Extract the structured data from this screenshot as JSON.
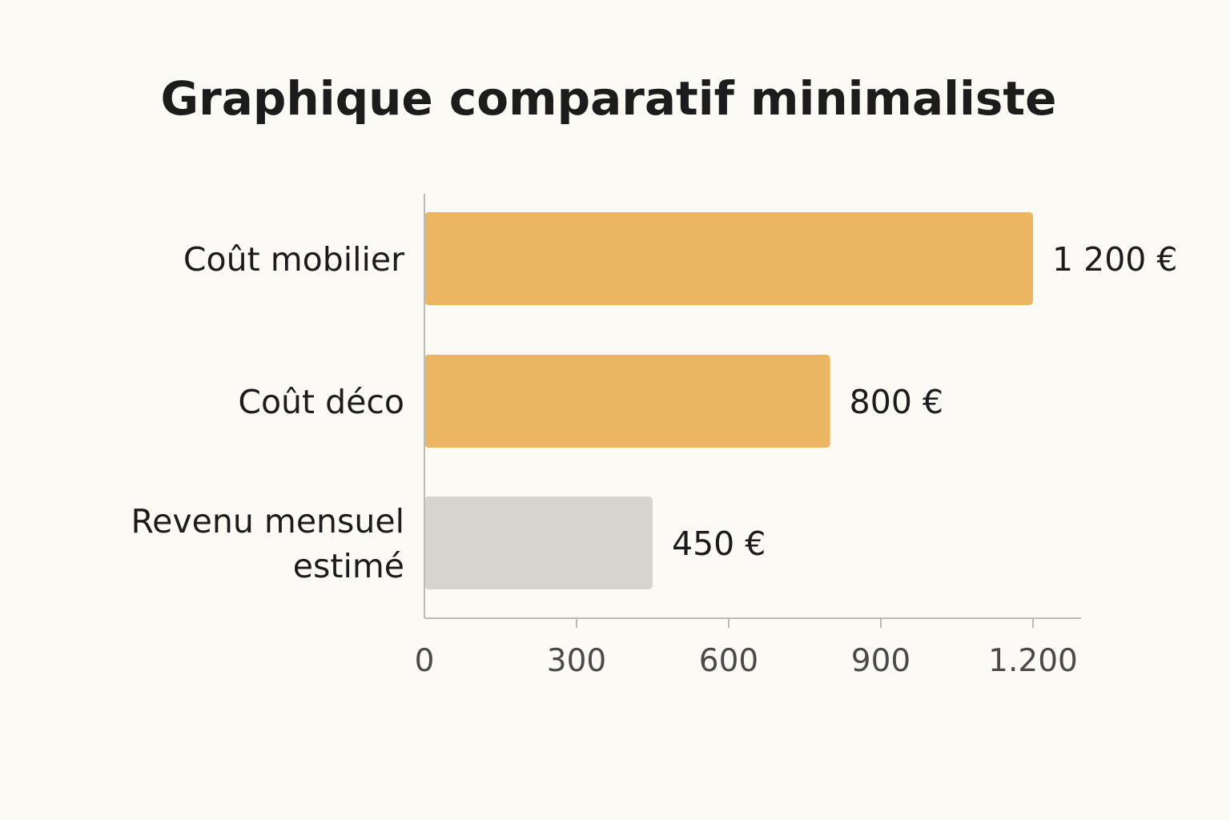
{
  "chart_data": {
    "type": "bar",
    "orientation": "horizontal",
    "title": "Graphique comparatif minimaliste",
    "categories": [
      "Coût mobilier",
      "Coût déco",
      "Revenu mensuel estimé"
    ],
    "category_lines": [
      [
        "Coût mobilier"
      ],
      [
        "Coût déco"
      ],
      [
        "Revenu mensuel",
        "estimé"
      ]
    ],
    "values": [
      1200,
      800,
      450
    ],
    "value_labels": [
      "1 200 €",
      "800 €",
      "450 €"
    ],
    "bar_colors": [
      "#ecb562",
      "#ecb562",
      "#d7d3ce"
    ],
    "xlim": [
      0,
      1200
    ],
    "x_ticks": [
      0,
      300,
      600,
      900,
      1200
    ],
    "x_tick_labels": [
      "0",
      "300",
      "600",
      "900",
      "1.200"
    ],
    "xlabel": "",
    "ylabel": "",
    "grid": false,
    "legend": "none"
  }
}
